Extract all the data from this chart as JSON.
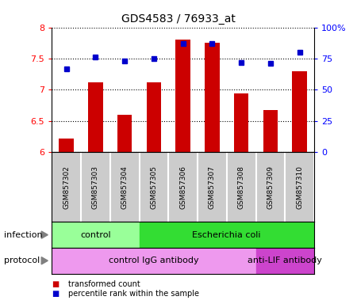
{
  "title": "GDS4583 / 76933_at",
  "samples": [
    "GSM857302",
    "GSM857303",
    "GSM857304",
    "GSM857305",
    "GSM857306",
    "GSM857307",
    "GSM857308",
    "GSM857309",
    "GSM857310"
  ],
  "transformed_count": [
    6.22,
    7.12,
    6.6,
    7.12,
    7.8,
    7.75,
    6.94,
    6.67,
    7.3
  ],
  "percentile_rank": [
    67,
    76,
    73,
    75,
    87,
    87,
    72,
    71,
    80
  ],
  "ylim_left": [
    6.0,
    8.0
  ],
  "ylim_right": [
    0,
    100
  ],
  "yticks_left": [
    6.0,
    6.5,
    7.0,
    7.5,
    8.0
  ],
  "yticks_right": [
    0,
    25,
    50,
    75,
    100
  ],
  "ytick_labels_left": [
    "6",
    "6.5",
    "7",
    "7.5",
    "8"
  ],
  "ytick_labels_right": [
    "0",
    "25",
    "50",
    "75",
    "100%"
  ],
  "bar_color": "#cc0000",
  "dot_color": "#0000cc",
  "bar_bottom": 6.0,
  "infection_groups": [
    {
      "label": "control",
      "start": 0,
      "end": 3,
      "color": "#99ff99"
    },
    {
      "label": "Escherichia coli",
      "start": 3,
      "end": 9,
      "color": "#33dd33"
    }
  ],
  "protocol_groups": [
    {
      "label": "control IgG antibody",
      "start": 0,
      "end": 7,
      "color": "#ee99ee"
    },
    {
      "label": "anti-LIF antibody",
      "start": 7,
      "end": 9,
      "color": "#cc44cc"
    }
  ],
  "legend_items": [
    {
      "color": "#cc0000",
      "label": "transformed count"
    },
    {
      "color": "#0000cc",
      "label": "percentile rank within the sample"
    }
  ],
  "infection_label": "infection",
  "protocol_label": "protocol"
}
